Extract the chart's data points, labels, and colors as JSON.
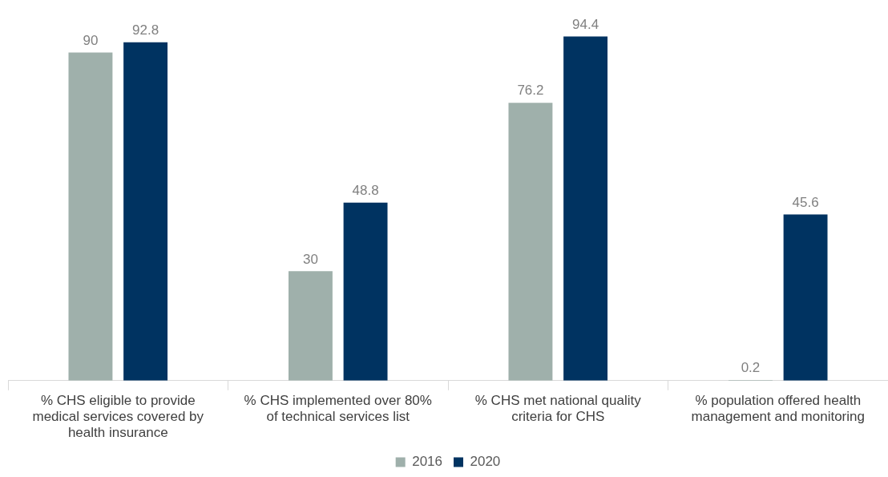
{
  "chart_data": {
    "type": "bar",
    "categories": [
      "% CHS eligible to provide medical services covered by health insurance",
      "% CHS implemented over 80% of technical services list",
      "% CHS met national quality criteria for CHS",
      "% population offered health management and monitoring"
    ],
    "series": [
      {
        "name": "2016",
        "color": "#9fb0ab",
        "values": [
          90,
          30,
          76.2,
          0.2
        ]
      },
      {
        "name": "2020",
        "color": "#003361",
        "values": [
          92.8,
          48.8,
          94.4,
          45.6
        ]
      }
    ],
    "data_labels": true,
    "legend": "bottom",
    "grid": false,
    "tick_labels": "x"
  }
}
